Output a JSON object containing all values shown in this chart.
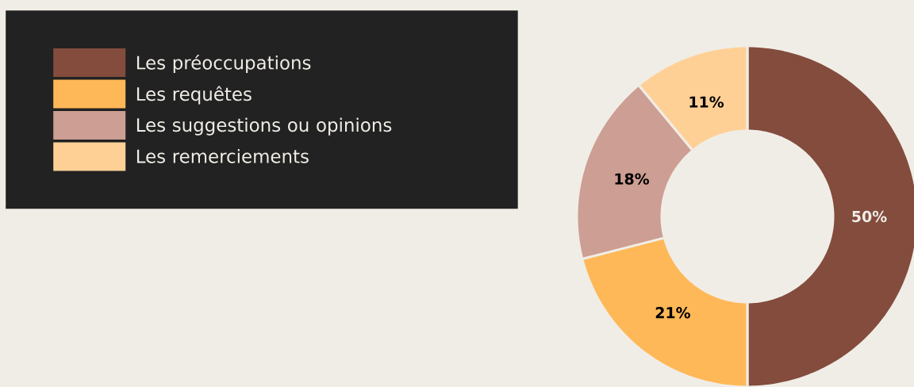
{
  "chart_data": {
    "type": "donut",
    "categories": [
      "Les préoccupations",
      "Les requêtes",
      "Les suggestions ou opinions",
      "Les remerciements"
    ],
    "values": [
      50,
      21,
      18,
      11
    ],
    "colors": [
      "#834c3d",
      "#ffb857",
      "#cd9e93",
      "#ffd096"
    ],
    "value_labels": [
      "50%",
      "21%",
      "18%",
      "11%"
    ],
    "legend": "top left"
  }
}
